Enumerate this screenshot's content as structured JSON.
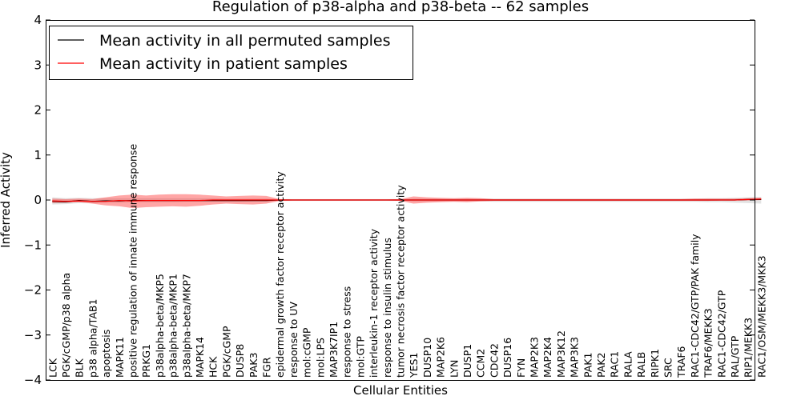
{
  "chart_data": {
    "type": "line",
    "title": "Regulation of p38-alpha and p38-beta -- 62 samples",
    "xlabel": "Cellular Entities",
    "ylabel": "Inferred Activity",
    "ylim": [
      -4,
      4
    ],
    "yticks": [
      -4,
      -3,
      -2,
      -1,
      0,
      1,
      2,
      3,
      4
    ],
    "ytick_labels": [
      "−4",
      "−3",
      "−2",
      "−1",
      "0",
      "1",
      "2",
      "3",
      "4"
    ],
    "legend_position": "top-left",
    "categories": [
      "LCK",
      "PGK/cGMP/p38 alpha",
      "BLK",
      "p38 alpha/TAB1",
      "apoptosis",
      "MAPK11",
      "positive regulation of innate immune response",
      "PRKG1",
      "p38alpha-beta/MKP5",
      "p38alpha-beta/MKP1",
      "p38alpha-beta/MKP7",
      "MAPK14",
      "HCK",
      "PGK/cGMP",
      "DUSP8",
      "PAK3",
      "FGR",
      "epidermal growth factor receptor activity",
      "response to UV",
      "mol:cGMP",
      "mol:LPS",
      "MAP3K7IP1",
      "response to stress",
      "mol:GTP",
      "interleukin-1 receptor activity",
      "response to insulin stimulus",
      "tumor necrosis factor receptor activity",
      "YES1",
      "DUSP10",
      "MAP2K6",
      "LYN",
      "DUSP1",
      "CCM2",
      "CDC42",
      "DUSP16",
      "FYN",
      "MAP2K3",
      "MAP2K4",
      "MAP3K12",
      "MAP3K3",
      "PAK1",
      "PAK2",
      "RAC1",
      "RALA",
      "RALB",
      "RIPK1",
      "SRC",
      "TRAF6",
      "RAC1-CDC42/GTP/PAK family",
      "TRAF6/MEKK3",
      "RAC1-CDC42/GTP",
      "RAL/GTP",
      "RIP1/MEKK3",
      "RAC1/OSM/MEKK3/MKK3"
    ],
    "series": [
      {
        "name": "Mean activity in all permuted samples",
        "color": "#000000",
        "values": [
          -0.03,
          -0.04,
          -0.01,
          -0.03,
          -0.02,
          -0.02,
          -0.01,
          -0.01,
          -0.01,
          -0.01,
          -0.01,
          -0.01,
          -0.01,
          -0.01,
          -0.01,
          -0.01,
          -0.01,
          0,
          0,
          0,
          0,
          0,
          0,
          0,
          0,
          0,
          0,
          0,
          0,
          0,
          0,
          0,
          0,
          0,
          0,
          0,
          0,
          0,
          0,
          0,
          0,
          0,
          0,
          0,
          0,
          0,
          0,
          0,
          0,
          0,
          0,
          0,
          0.01,
          0.01
        ],
        "band_low": [
          -0.1,
          -0.09,
          -0.07,
          -0.07,
          -0.06,
          -0.06,
          -0.05,
          -0.05,
          -0.05,
          -0.05,
          -0.04,
          -0.04,
          -0.04,
          -0.04,
          -0.04,
          -0.03,
          -0.03,
          -0.02,
          -0.02,
          -0.02,
          -0.02,
          -0.02,
          -0.02,
          -0.02,
          -0.02,
          -0.02,
          -0.02,
          -0.03,
          -0.03,
          -0.03,
          -0.03,
          -0.03,
          -0.03,
          -0.04,
          -0.04,
          -0.04,
          -0.04,
          -0.04,
          -0.04,
          -0.04,
          -0.04,
          -0.04,
          -0.04,
          -0.04,
          -0.04,
          -0.04,
          -0.04,
          -0.04,
          -0.04,
          -0.05,
          -0.05,
          -0.06,
          -0.07,
          -0.08
        ],
        "band_high": [
          0.06,
          0.04,
          0.05,
          0.04,
          0.04,
          0.04,
          0.04,
          0.04,
          0.04,
          0.04,
          0.04,
          0.04,
          0.04,
          0.03,
          0.03,
          0.03,
          0.03,
          0.02,
          0.02,
          0.02,
          0.02,
          0.02,
          0.02,
          0.02,
          0.02,
          0.02,
          0.02,
          0.03,
          0.03,
          0.03,
          0.03,
          0.03,
          0.03,
          0.03,
          0.03,
          0.03,
          0.03,
          0.03,
          0.03,
          0.03,
          0.03,
          0.03,
          0.03,
          0.03,
          0.03,
          0.03,
          0.03,
          0.03,
          0.03,
          0.04,
          0.04,
          0.05,
          0.06,
          0.07
        ]
      },
      {
        "name": "Mean activity in patient samples",
        "color": "#ff0000",
        "values": [
          -0.02,
          -0.03,
          -0.02,
          -0.03,
          -0.03,
          -0.01,
          -0.02,
          -0.01,
          -0.01,
          -0.01,
          -0.01,
          -0.01,
          0,
          0,
          0,
          0,
          0,
          0,
          0,
          0,
          0,
          0,
          0,
          0,
          0,
          0,
          0,
          0,
          0,
          0,
          0,
          0,
          0,
          0,
          0,
          0,
          0,
          0,
          0,
          0,
          0,
          0,
          0,
          0,
          0,
          0,
          0,
          0,
          0,
          0,
          0,
          0,
          0.01,
          0.02
        ],
        "band_low": [
          -0.07,
          -0.06,
          -0.05,
          -0.08,
          -0.12,
          -0.14,
          -0.18,
          -0.16,
          -0.15,
          -0.14,
          -0.15,
          -0.13,
          -0.1,
          -0.08,
          -0.09,
          -0.1,
          -0.08,
          -0.02,
          -0.01,
          -0.01,
          -0.01,
          -0.01,
          -0.01,
          -0.01,
          -0.01,
          -0.01,
          -0.02,
          -0.08,
          -0.06,
          -0.05,
          -0.04,
          -0.05,
          -0.03,
          -0.02,
          -0.02,
          -0.02,
          -0.02,
          -0.02,
          -0.02,
          -0.02,
          -0.02,
          -0.02,
          -0.02,
          -0.02,
          -0.02,
          -0.02,
          -0.02,
          -0.02,
          -0.02,
          -0.02,
          -0.01,
          -0.01,
          -0.01,
          0
        ],
        "band_high": [
          0.03,
          0.02,
          0.03,
          0.02,
          0.06,
          0.1,
          0.12,
          0.1,
          0.12,
          0.13,
          0.13,
          0.12,
          0.1,
          0.08,
          0.09,
          0.1,
          0.09,
          0.02,
          0.01,
          0.01,
          0.01,
          0.01,
          0.01,
          0.01,
          0.01,
          0.01,
          0.02,
          0.08,
          0.06,
          0.05,
          0.04,
          0.05,
          0.04,
          0.02,
          0.02,
          0.02,
          0.02,
          0.02,
          0.02,
          0.02,
          0.02,
          0.02,
          0.02,
          0.02,
          0.02,
          0.02,
          0.02,
          0.02,
          0.03,
          0.03,
          0.03,
          0.03,
          0.04,
          0.05
        ]
      }
    ]
  }
}
